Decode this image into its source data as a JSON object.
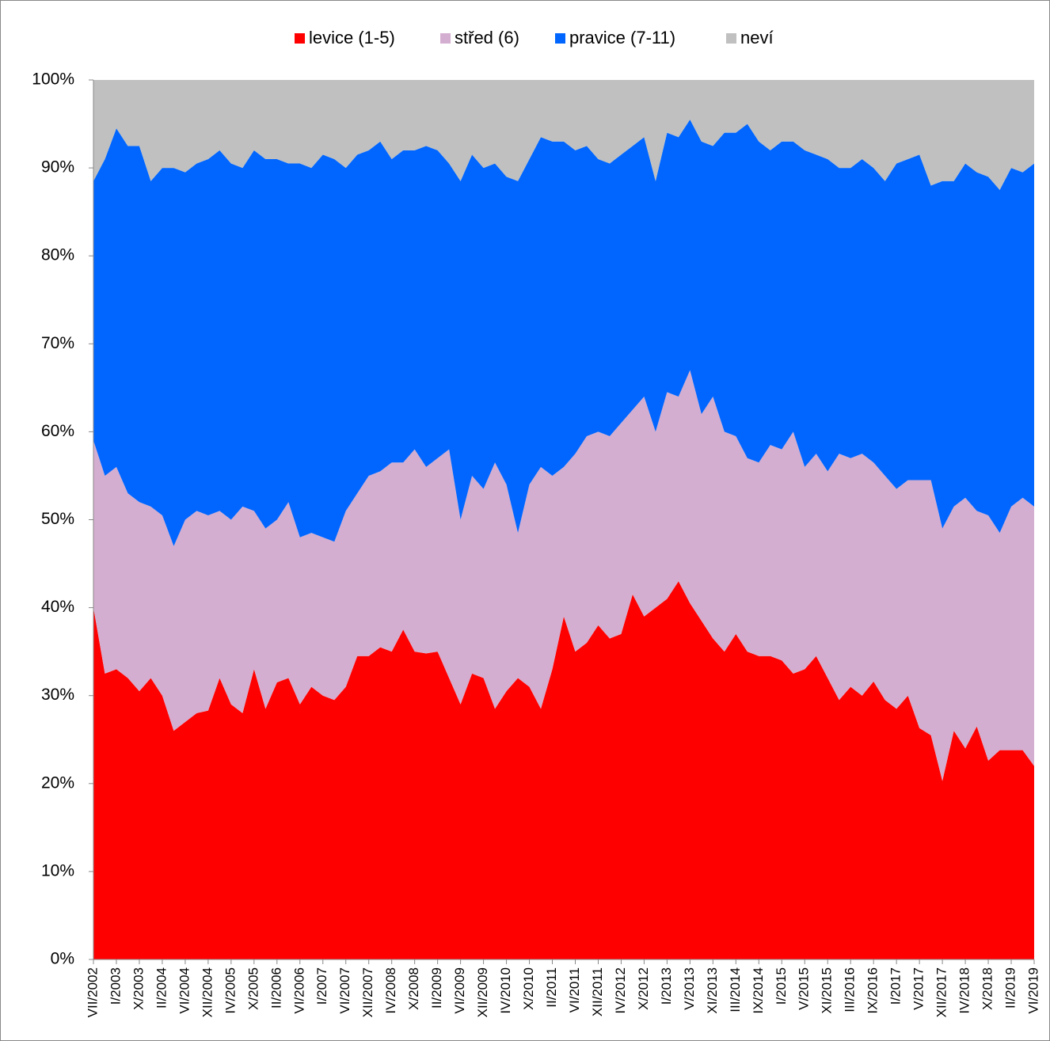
{
  "chart_data": {
    "type": "stacked-area-100",
    "categories": [
      "VII/2002",
      null,
      "I/2003",
      null,
      "X/2003",
      null,
      "II/2004",
      null,
      "VI/2004",
      null,
      "XII/2004",
      null,
      "IV/2005",
      null,
      "X/2005",
      null,
      "II/2006",
      null,
      "VI/2006",
      null,
      "I/2007",
      null,
      "VI/2007",
      null,
      "XII/2007",
      null,
      "IV/2008",
      null,
      "X/2008",
      null,
      "II/2009",
      null,
      "VI/2009",
      null,
      "XII/2009",
      null,
      "IV/2010",
      null,
      "X/2010",
      null,
      "II/2011",
      null,
      "VI/2011",
      null,
      "XII/2011",
      null,
      "IV/2012",
      null,
      "X/2012",
      null,
      "I/2013",
      null,
      "V/2013",
      null,
      "XI/2013",
      null,
      "III/2014",
      null,
      "IX/2014",
      null,
      "I/2015",
      null,
      "V/2015",
      null,
      "XI/2015",
      null,
      "III/2016",
      null,
      "IX/2016",
      null,
      "I/2017",
      null,
      "V/2017",
      null,
      "XII/2017",
      null,
      "IV/2018",
      null,
      "X/2018",
      null,
      "II/2019",
      null,
      "VI/2019"
    ],
    "series": [
      {
        "name": "levice (1-5)",
        "color": "#ff0000",
        "values": [
          40,
          32.5,
          33,
          32,
          30.5,
          32,
          30,
          26,
          27,
          28,
          28.3,
          32,
          29,
          28,
          33,
          28.5,
          31.5,
          32,
          29,
          31,
          30,
          29.5,
          31,
          34.5,
          34.5,
          35.5,
          35,
          37.5,
          35,
          34.8,
          35,
          32,
          29,
          32.5,
          32,
          28.5,
          30.5,
          32,
          31,
          28.5,
          33,
          39,
          35,
          36,
          38,
          36.5,
          37,
          41.5,
          39,
          40,
          41,
          43,
          40.5,
          38.5,
          36.5,
          35,
          37,
          35,
          34.5,
          34.5,
          34,
          32.5,
          33,
          34.5,
          32,
          29.5,
          31,
          30,
          31.6,
          29.5,
          28.5,
          30,
          26.3,
          25.5,
          20.3,
          26,
          24,
          26.5,
          22.6,
          23.8,
          23.8,
          23.8,
          22
        ]
      },
      {
        "name": "střed (6)",
        "color": "#d4aed0",
        "values": [
          19,
          22.5,
          23,
          21,
          21.5,
          19.5,
          20.5,
          21,
          23,
          23,
          22.2,
          19,
          21,
          23.5,
          18,
          20.5,
          18.5,
          20,
          19,
          17.5,
          18,
          18,
          20,
          18.5,
          20.5,
          20,
          21.5,
          19,
          23,
          21.2,
          22,
          26,
          21,
          22.5,
          21.5,
          28,
          23.5,
          16.5,
          23,
          27.5,
          22,
          17,
          22.5,
          23.5,
          22,
          23,
          24,
          21,
          25,
          20,
          23.5,
          21,
          26.5,
          23.5,
          27.5,
          25,
          22.5,
          22,
          22,
          24,
          24,
          27.5,
          23,
          23,
          23.5,
          28,
          26,
          27.5,
          24.9,
          25.5,
          25,
          24.5,
          28.2,
          29,
          28.7,
          25.5,
          28.5,
          24.5,
          27.9,
          24.7,
          27.7,
          28.7,
          29.5
        ]
      },
      {
        "name": "pravice (7-11)",
        "color": "#0066ff",
        "values": [
          29.5,
          36,
          38.5,
          39.5,
          40.5,
          37,
          39.5,
          43,
          39.5,
          39.5,
          40.5,
          41,
          40.5,
          38.5,
          41,
          42,
          41,
          38.5,
          42.5,
          41.5,
          43.5,
          43.5,
          39,
          38.5,
          37,
          37.5,
          34.5,
          35.5,
          34,
          36.5,
          35,
          32.5,
          38.5,
          36.5,
          36.5,
          34,
          35,
          40,
          37,
          37.5,
          38,
          37,
          34.5,
          33,
          31,
          31,
          30.5,
          30,
          29.5,
          28.5,
          29.5,
          29.5,
          28.5,
          31,
          28.5,
          34,
          34.5,
          38,
          36.5,
          33.5,
          35,
          33,
          36,
          34,
          35.5,
          32.5,
          33,
          33.5,
          33.5,
          33.5,
          37,
          36.5,
          37,
          33.5,
          39.5,
          37,
          38,
          38.5,
          38.5,
          39,
          38.5,
          37,
          39
        ]
      },
      {
        "name": "neví",
        "color": "#c0c0c0",
        "values": [
          11.5,
          9,
          5.5,
          7.5,
          7.5,
          11.5,
          10,
          10,
          10.5,
          9.5,
          9,
          8,
          9.5,
          10,
          8,
          9,
          9,
          9.5,
          9.5,
          10,
          8.5,
          9,
          10,
          8.5,
          8,
          7,
          9,
          8,
          8,
          7.5,
          8,
          9.5,
          11.5,
          8.5,
          10,
          9.5,
          11,
          11.5,
          9,
          6.5,
          7,
          7,
          8,
          7.5,
          9,
          9.5,
          8.5,
          7.5,
          6.5,
          11.5,
          6,
          6.5,
          4.5,
          7,
          7.5,
          6,
          6,
          5,
          7,
          8,
          7,
          7,
          8,
          8.5,
          9,
          10,
          10,
          9,
          10,
          11.5,
          9.5,
          9,
          8.5,
          12,
          11.5,
          11.5,
          9.5,
          10.5,
          11,
          12.5,
          10,
          10.5,
          9.5
        ]
      }
    ],
    "ylim": [
      0,
      100
    ],
    "yticks": [
      {
        "value": 0,
        "label": "0%"
      },
      {
        "value": 10,
        "label": "10%"
      },
      {
        "value": 20,
        "label": "20%"
      },
      {
        "value": 30,
        "label": "30%"
      },
      {
        "value": 40,
        "label": "40%"
      },
      {
        "value": 50,
        "label": "50%"
      },
      {
        "value": 60,
        "label": "60%"
      },
      {
        "value": 70,
        "label": "70%"
      },
      {
        "value": 80,
        "label": "80%"
      },
      {
        "value": 90,
        "label": "90%"
      },
      {
        "value": 100,
        "label": "100%"
      }
    ],
    "legend": "top"
  }
}
